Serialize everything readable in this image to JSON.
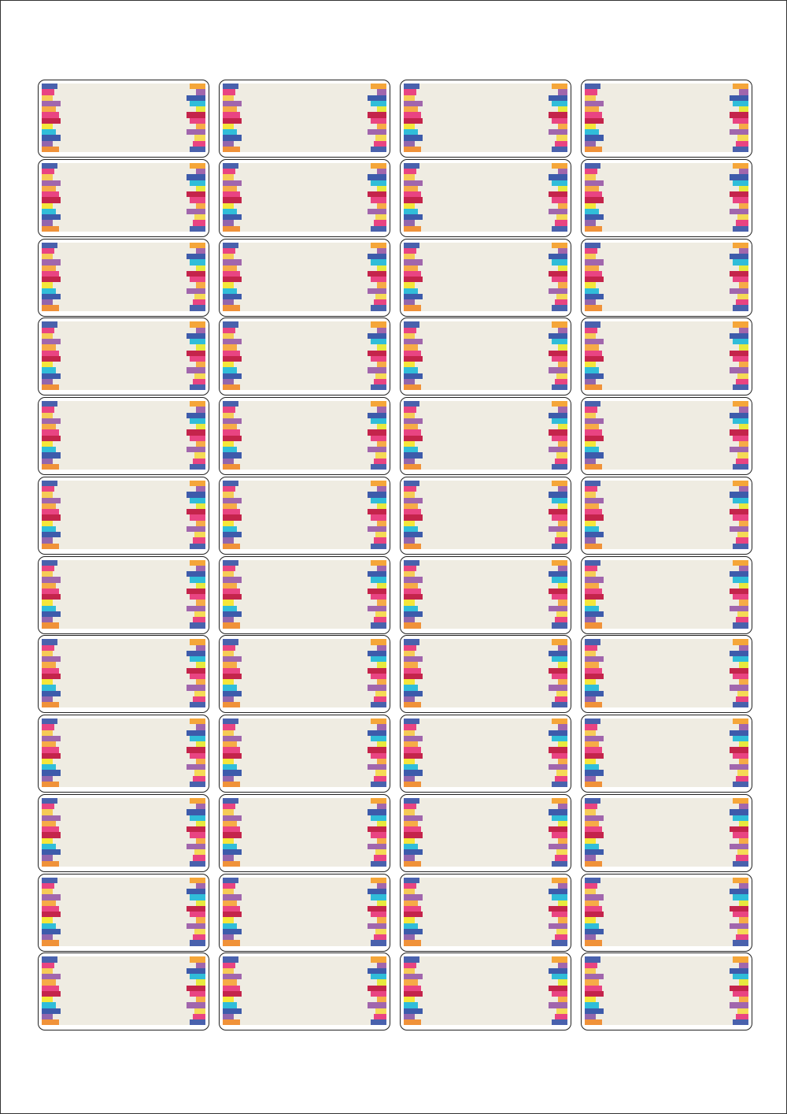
{
  "sheet": {
    "columns": 4,
    "rows": 12
  },
  "colors": {
    "label_fill": "#efece2",
    "border": "#222222"
  },
  "stripes": {
    "left": [
      {
        "color": "#3b55a8",
        "width": 20
      },
      {
        "color": "#e8357a",
        "width": 16
      },
      {
        "color": "#f6c84a",
        "width": 14
      },
      {
        "color": "#9a5aa8",
        "width": 24
      },
      {
        "color": "#f6a53a",
        "width": 18
      },
      {
        "color": "#e8357a",
        "width": 22
      },
      {
        "color": "#c0123e",
        "width": 24
      },
      {
        "color": "#f5e52a",
        "width": 14
      },
      {
        "color": "#1fb8d8",
        "width": 18
      },
      {
        "color": "#2e4ea6",
        "width": 24
      },
      {
        "color": "#8b5aa8",
        "width": 14
      },
      {
        "color": "#f08a2a",
        "width": 22
      }
    ],
    "right": [
      {
        "color": "#f5a02a",
        "width": 20
      },
      {
        "color": "#9a5aa8",
        "width": 12
      },
      {
        "color": "#2e4ea6",
        "width": 24
      },
      {
        "color": "#1fb8d8",
        "width": 20
      },
      {
        "color": "#e6e830",
        "width": 12
      },
      {
        "color": "#c0123e",
        "width": 24
      },
      {
        "color": "#e8357a",
        "width": 20
      },
      {
        "color": "#f6a53a",
        "width": 12
      },
      {
        "color": "#9a5aa8",
        "width": 24
      },
      {
        "color": "#f5d84a",
        "width": 14
      },
      {
        "color": "#e8357a",
        "width": 16
      },
      {
        "color": "#3b55a8",
        "width": 20
      }
    ]
  }
}
